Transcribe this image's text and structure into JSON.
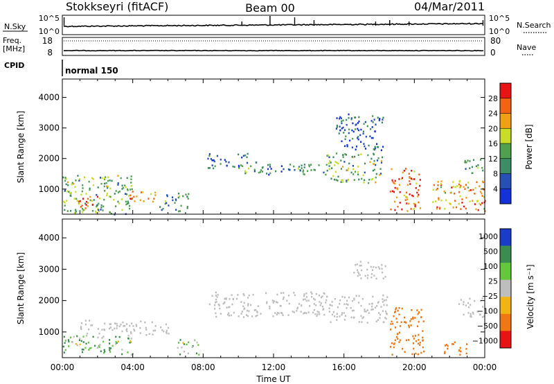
{
  "header": {
    "station": "Stokkseyri (fitACF)",
    "beam": "Beam 00",
    "date": "04/Mar/2011"
  },
  "noise_panel": {
    "left_label": "N.Sky",
    "right_label": "N.Search",
    "ticks_left": [
      "10^5",
      "10^0"
    ],
    "ticks_right": [
      "10^5",
      "10^0"
    ]
  },
  "freq_panel": {
    "left_label_line1": "Freq.",
    "left_label_line2": "[MHz]",
    "right_label": "Nave",
    "ticks_left": [
      "18",
      "8"
    ],
    "ticks_right": [
      "80",
      "0"
    ]
  },
  "cpid": {
    "label": "CPID",
    "value": "normal 150"
  },
  "colors": {
    "power": [
      "#1432d8",
      "#2850b4",
      "#3c8c64",
      "#50a050",
      "#c8dc28",
      "#f0a014",
      "#f06414",
      "#e61414"
    ],
    "velocity": [
      "#1a3cc8",
      "#3c8c50",
      "#64c83c",
      "#bebebe",
      "#f0b414",
      "#f07814",
      "#e61414"
    ]
  },
  "chart_data": [
    {
      "type": "heatmap",
      "name": "power",
      "xlabel": "",
      "ylabel": "Slant Range [km]",
      "y_ticks": [
        1000,
        2000,
        3000,
        4000
      ],
      "ylim": [
        180,
        4600
      ],
      "colorbar_label": "Power [dB]",
      "colorbar_ticks": [
        "4",
        "8",
        "12",
        "16",
        "20",
        "24",
        "28"
      ],
      "echo_regions": [
        {
          "t0": 0.0,
          "t1": 4.0,
          "r0": 200,
          "r1": 1500,
          "v": 14
        },
        {
          "t0": 0.8,
          "t1": 2.0,
          "r0": 400,
          "r1": 800,
          "v": 26
        },
        {
          "t0": 3.7,
          "t1": 5.3,
          "r0": 600,
          "r1": 1000,
          "v": 22
        },
        {
          "t0": 5.5,
          "t1": 7.2,
          "r0": 300,
          "r1": 900,
          "v": 12
        },
        {
          "t0": 8.2,
          "t1": 10.5,
          "r0": 1700,
          "r1": 2200,
          "v": 8
        },
        {
          "t0": 10.0,
          "t1": 15.0,
          "r0": 1500,
          "r1": 1900,
          "v": 10
        },
        {
          "t0": 15.0,
          "t1": 18.2,
          "r0": 1200,
          "r1": 2200,
          "v": 14
        },
        {
          "t0": 15.5,
          "t1": 18.2,
          "r0": 2300,
          "r1": 3500,
          "v": 6
        },
        {
          "t0": 18.6,
          "t1": 20.3,
          "r0": 300,
          "r1": 1700,
          "v": 26
        },
        {
          "t0": 21.0,
          "t1": 24.0,
          "r0": 300,
          "r1": 1300,
          "v": 22
        },
        {
          "t0": 22.8,
          "t1": 24.0,
          "r0": 1500,
          "r1": 2000,
          "v": 10
        }
      ]
    },
    {
      "type": "heatmap",
      "name": "velocity",
      "xlabel": "Time UT",
      "ylabel": "Slant Range [km]",
      "y_ticks": [
        1000,
        2000,
        3000,
        4000
      ],
      "ylim": [
        180,
        4600
      ],
      "colorbar_label": "Velocity [m s⁻¹]",
      "colorbar_ticks": [
        "1000",
        "500",
        "100",
        "25",
        "−25",
        "−100",
        "−500",
        "−1000"
      ],
      "x_ticks": [
        "00:00",
        "04:00",
        "08:00",
        "12:00",
        "16:00",
        "20:00",
        "00:00"
      ],
      "echo_regions": [
        {
          "t0": 0.0,
          "t1": 4.0,
          "r0": 300,
          "r1": 900,
          "v": 60
        },
        {
          "t0": 1.0,
          "t1": 6.0,
          "r0": 900,
          "r1": 1400,
          "v": 0
        },
        {
          "t0": 6.5,
          "t1": 7.8,
          "r0": 300,
          "r1": 800,
          "v": 60
        },
        {
          "t0": 8.3,
          "t1": 15.0,
          "r0": 1500,
          "r1": 2300,
          "v": 0
        },
        {
          "t0": 15.0,
          "t1": 18.5,
          "r0": 1300,
          "r1": 2200,
          "v": 0
        },
        {
          "t0": 16.5,
          "t1": 18.5,
          "r0": 2700,
          "r1": 3300,
          "v": 0
        },
        {
          "t0": 18.6,
          "t1": 20.5,
          "r0": 300,
          "r1": 1800,
          "v": -300
        },
        {
          "t0": 21.5,
          "t1": 23.0,
          "r0": 300,
          "r1": 700,
          "v": -300
        },
        {
          "t0": 22.5,
          "t1": 24.0,
          "r0": 1500,
          "r1": 2100,
          "v": 0
        }
      ]
    }
  ]
}
